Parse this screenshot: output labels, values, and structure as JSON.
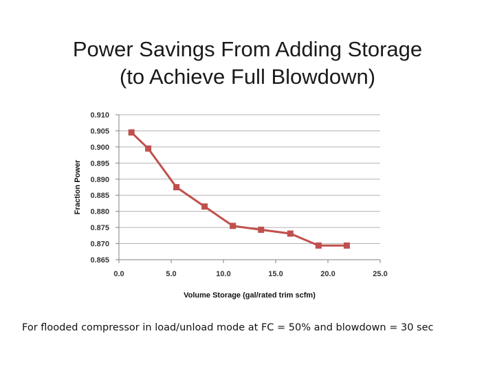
{
  "slide": {
    "title_line1": "Power Savings From Adding Storage",
    "title_line2": "(to Achieve Full Blowdown)",
    "caption": "For flooded compressor in load/unload mode at FC = 50% and blowdown = 30 sec"
  },
  "colors": {
    "series": "#c0504d",
    "grid": "#b3b3b3",
    "axis": "#808080"
  },
  "chart_data": {
    "type": "line",
    "title": "",
    "xlabel": "Volume Storage (gal/rated trim scfm)",
    "ylabel": "Fraction Power",
    "xlim": [
      0.0,
      25.0
    ],
    "ylim": [
      0.865,
      0.91
    ],
    "xticks": [
      0.0,
      5.0,
      10.0,
      15.0,
      20.0,
      25.0
    ],
    "yticks": [
      0.865,
      0.87,
      0.875,
      0.88,
      0.885,
      0.89,
      0.895,
      0.9,
      0.905,
      0.91
    ],
    "xtick_labels": [
      "0.0",
      "5.0",
      "10.0",
      "15.0",
      "20.0",
      "25.0"
    ],
    "ytick_labels": [
      "0.865",
      "0.870",
      "0.875",
      "0.880",
      "0.885",
      "0.890",
      "0.895",
      "0.900",
      "0.905",
      "0.910"
    ],
    "grid": "horizontal",
    "legend": "none",
    "marker": "square",
    "series": [
      {
        "x": [
          1.2,
          2.8,
          5.5,
          8.2,
          10.9,
          13.6,
          16.4,
          19.1,
          21.8
        ],
        "values": [
          0.9045,
          0.8995,
          0.8875,
          0.8815,
          0.8755,
          0.8743,
          0.8731,
          0.8694,
          0.8694
        ]
      }
    ]
  }
}
